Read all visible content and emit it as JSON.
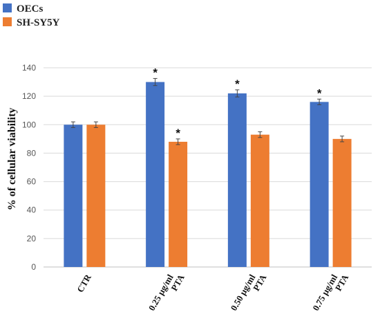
{
  "chart_data": {
    "type": "bar",
    "categories": [
      [
        "CTR"
      ],
      [
        "0.25 µg/ml",
        "PTA"
      ],
      [
        "0.50 µg/ml",
        "PTA"
      ],
      [
        "0.75 µg/ml",
        "PTA"
      ]
    ],
    "series": [
      {
        "name": "OECs",
        "color": "#4472C4",
        "values": [
          100,
          130,
          122,
          116
        ],
        "errors": [
          2,
          2.5,
          2.5,
          2
        ],
        "significant": [
          false,
          true,
          true,
          true
        ]
      },
      {
        "name": "SH-SY5Y",
        "color": "#ED7D31",
        "values": [
          100,
          88,
          93,
          90
        ],
        "errors": [
          2,
          2,
          2,
          2
        ],
        "significant": [
          false,
          true,
          false,
          false
        ]
      }
    ],
    "ylabel": "% of  cellular viability",
    "xlabel": "",
    "ylim": [
      0,
      140
    ],
    "yticks": [
      0,
      20,
      40,
      60,
      80,
      100,
      120,
      140
    ],
    "significance_marker": "*",
    "legend_position": "top-left",
    "grid": true
  }
}
